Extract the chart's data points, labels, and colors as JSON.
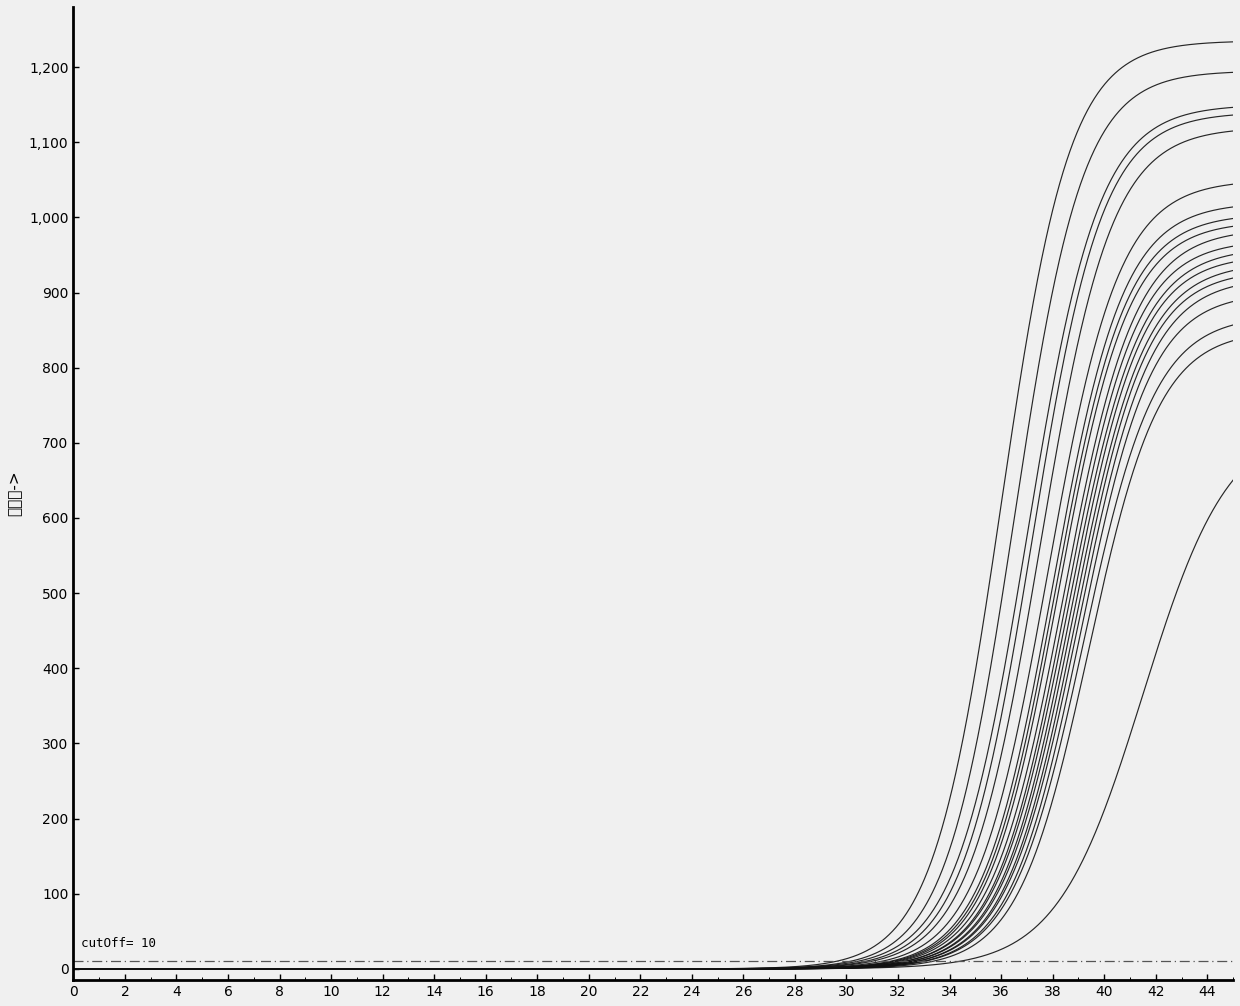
{
  "xlabel": "",
  "ylabel": "荧光値->",
  "xlim": [
    0,
    45
  ],
  "ylim": [
    -15,
    1280
  ],
  "xticks": [
    0,
    2,
    4,
    6,
    8,
    10,
    12,
    14,
    16,
    18,
    20,
    22,
    24,
    26,
    28,
    30,
    32,
    34,
    36,
    38,
    40,
    42,
    44
  ],
  "yticks": [
    0,
    100,
    200,
    300,
    400,
    500,
    600,
    700,
    800,
    900,
    1000,
    1100,
    1200
  ],
  "cutoff_y": 10,
  "cutoff_label": "cutOff= 10",
  "background_color": "#f0f0f0",
  "line_color": "#111111",
  "cutoff_line_color": "#555555",
  "curve_params": [
    {
      "L": 1235,
      "k": 0.75,
      "x0": 36.0
    },
    {
      "L": 1195,
      "k": 0.75,
      "x0": 36.5
    },
    {
      "L": 1150,
      "k": 0.72,
      "x0": 37.0
    },
    {
      "L": 1140,
      "k": 0.73,
      "x0": 37.2
    },
    {
      "L": 1120,
      "k": 0.72,
      "x0": 37.5
    },
    {
      "L": 1050,
      "k": 0.72,
      "x0": 37.8
    },
    {
      "L": 1020,
      "k": 0.73,
      "x0": 38.0
    },
    {
      "L": 1005,
      "k": 0.73,
      "x0": 38.1
    },
    {
      "L": 995,
      "k": 0.73,
      "x0": 38.2
    },
    {
      "L": 985,
      "k": 0.72,
      "x0": 38.4
    },
    {
      "L": 970,
      "k": 0.73,
      "x0": 38.5
    },
    {
      "L": 960,
      "k": 0.72,
      "x0": 38.6
    },
    {
      "L": 950,
      "k": 0.73,
      "x0": 38.7
    },
    {
      "L": 940,
      "k": 0.72,
      "x0": 38.8
    },
    {
      "L": 930,
      "k": 0.73,
      "x0": 38.9
    },
    {
      "L": 920,
      "k": 0.72,
      "x0": 39.0
    },
    {
      "L": 900,
      "k": 0.73,
      "x0": 39.1
    },
    {
      "L": 870,
      "k": 0.72,
      "x0": 39.2
    },
    {
      "L": 850,
      "k": 0.73,
      "x0": 39.4
    },
    {
      "L": 730,
      "k": 0.6,
      "x0": 41.5
    }
  ],
  "figsize": [
    12.4,
    10.06
  ],
  "dpi": 100,
  "ylabel_fontsize": 11,
  "tick_fontsize": 10,
  "spine_color": "#000000",
  "cutoff_label_fontsize": 9
}
